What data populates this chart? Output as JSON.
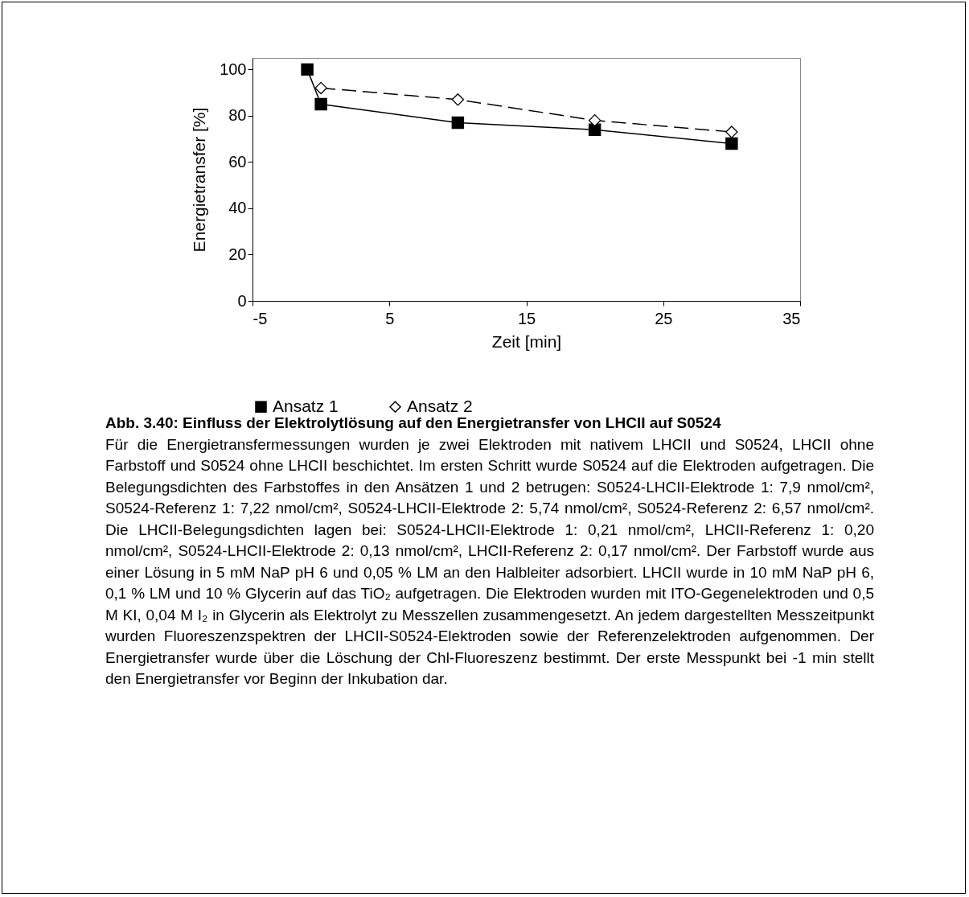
{
  "chart_data": {
    "type": "line",
    "xlabel": "Zeit [min]",
    "ylabel": "Energietransfer [%]",
    "x": [
      -1,
      0,
      10,
      20,
      30
    ],
    "series": [
      {
        "name": "Ansatz 1",
        "color": "#000000",
        "marker": "square",
        "line_style": "solid",
        "values": [
          100,
          85,
          77,
          74,
          68
        ]
      },
      {
        "name": "Ansatz 2",
        "color": "#000000",
        "marker": "diamond",
        "line_style": "dashed",
        "x": [
          0,
          10,
          20,
          30
        ],
        "values": [
          92,
          87,
          78,
          73
        ]
      }
    ],
    "xlim": [
      -5,
      35
    ],
    "xticks": [
      -5,
      5,
      15,
      25,
      35
    ],
    "ylim": [
      0,
      105
    ],
    "yticks": [
      0,
      20,
      40,
      60,
      80,
      100
    ],
    "grid": false,
    "legend": "bottom",
    "annotations": [
      "Abb. 3.40: Einfluss der Elektrolytlösung auf den Energietransfer von LHCII auf S0524",
      "Für die Energietransfermessungen wurden je zwei Elektroden mit nativem LHCII und S0524, LHCII ohne Farbstoff und S0524 ohne LHCII beschichtet. Im ersten Schritt wurde S0524 auf die Elektroden aufgetragen. Die Belegungsdichten des Farbstoffes in den Ansätzen 1 und 2 betrugen: S0524-LHCII-Elektrode 1: 7,9 nmol/cm², S0524-Referenz 1: 7,22 nmol/cm², S0524-LHCII-Elektrode 2: 5,74 nmol/cm², S0524-Referenz 2: 6,57 nmol/cm². Die LHCII-Belegungsdichten lagen bei: S0524-LHCII-Elektrode 1: 0,21 nmol/cm², LHCII-Referenz 1: 0,20 nmol/cm², S0524-LHCII-Elektrode 2: 0,13 nmol/cm², LHCII-Referenz 2: 0,17 nmol/cm². Der Farbstoff wurde aus einer Lösung in 5 mM NaP pH 6 und 0,05 % LM an den Halbleiter adsorbiert. LHCII wurde in 10 mM NaP pH 6, 0,1 % LM und 10 % Glycerin auf das TiO₂ aufgetragen. Die Elektroden wurden mit ITO-Gegenelektroden und 0,5 M KI, 0,04 M I₂ in Glycerin als Elektrolyt zu Messzellen zusammengesetzt. An jedem dargestellten Messzeitpunkt wurden Fluoreszenzspektren der LHCII-S0524-Elektroden sowie der Referenzelektroden aufgenommen. Der Energietransfer wurde über die Löschung der Chl-Fluoreszenz bestimmt. Der erste Messpunkt bei -1 min stellt den Energietransfer vor Beginn der Inkubation dar."
    ]
  }
}
